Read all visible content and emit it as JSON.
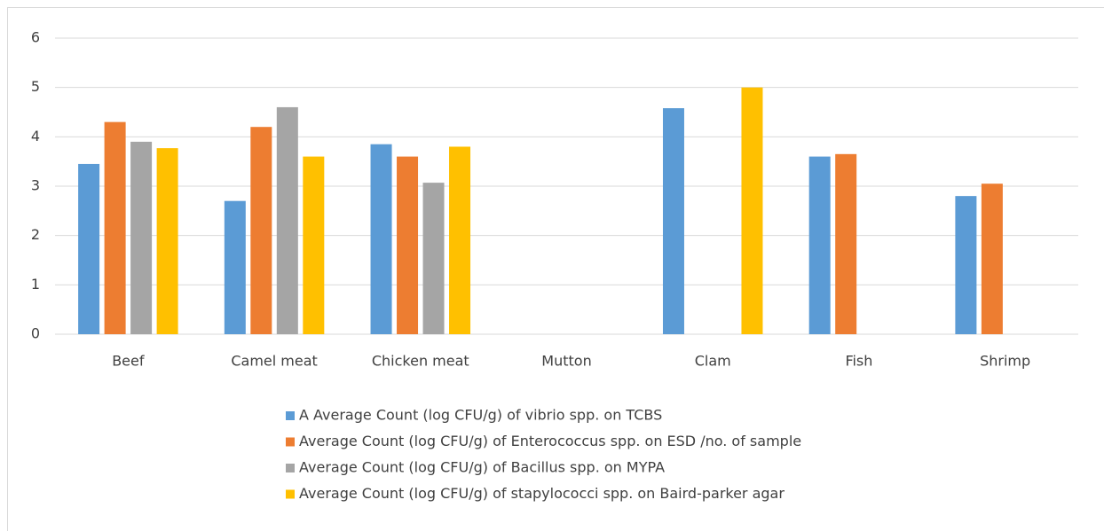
{
  "chart_data": {
    "type": "bar",
    "categories": [
      "Beef",
      "Camel meat",
      "Chicken meat",
      "Mutton",
      "Clam",
      "Fish",
      "Shrimp"
    ],
    "series": [
      {
        "name": "A Average Count (log CFU/g) of vibrio spp. on TCBS",
        "color": "#5b9bd5",
        "values": [
          3.45,
          2.7,
          3.85,
          0,
          4.58,
          3.6,
          2.8
        ]
      },
      {
        "name": "Average Count (log CFU/g) of Enterococcus spp. on ESD /no. of sample",
        "color": "#ed7d31",
        "values": [
          4.3,
          4.2,
          3.6,
          0,
          0,
          3.65,
          3.05
        ]
      },
      {
        "name": "Average Count (log CFU/g) of Bacillus spp. on MYPA",
        "color": "#a5a5a5",
        "values": [
          3.9,
          4.6,
          3.07,
          0,
          0,
          0,
          0
        ]
      },
      {
        "name": "Average Count (log CFU/g) of stapylococci spp. on Baird-parker agar",
        "color": "#ffc000",
        "values": [
          3.77,
          3.6,
          3.8,
          0,
          5.0,
          0,
          0
        ]
      }
    ],
    "ylim": [
      0,
      6
    ],
    "yticks": [
      0,
      1,
      2,
      3,
      4,
      5,
      6
    ],
    "grid": true,
    "legend": "bottom"
  }
}
